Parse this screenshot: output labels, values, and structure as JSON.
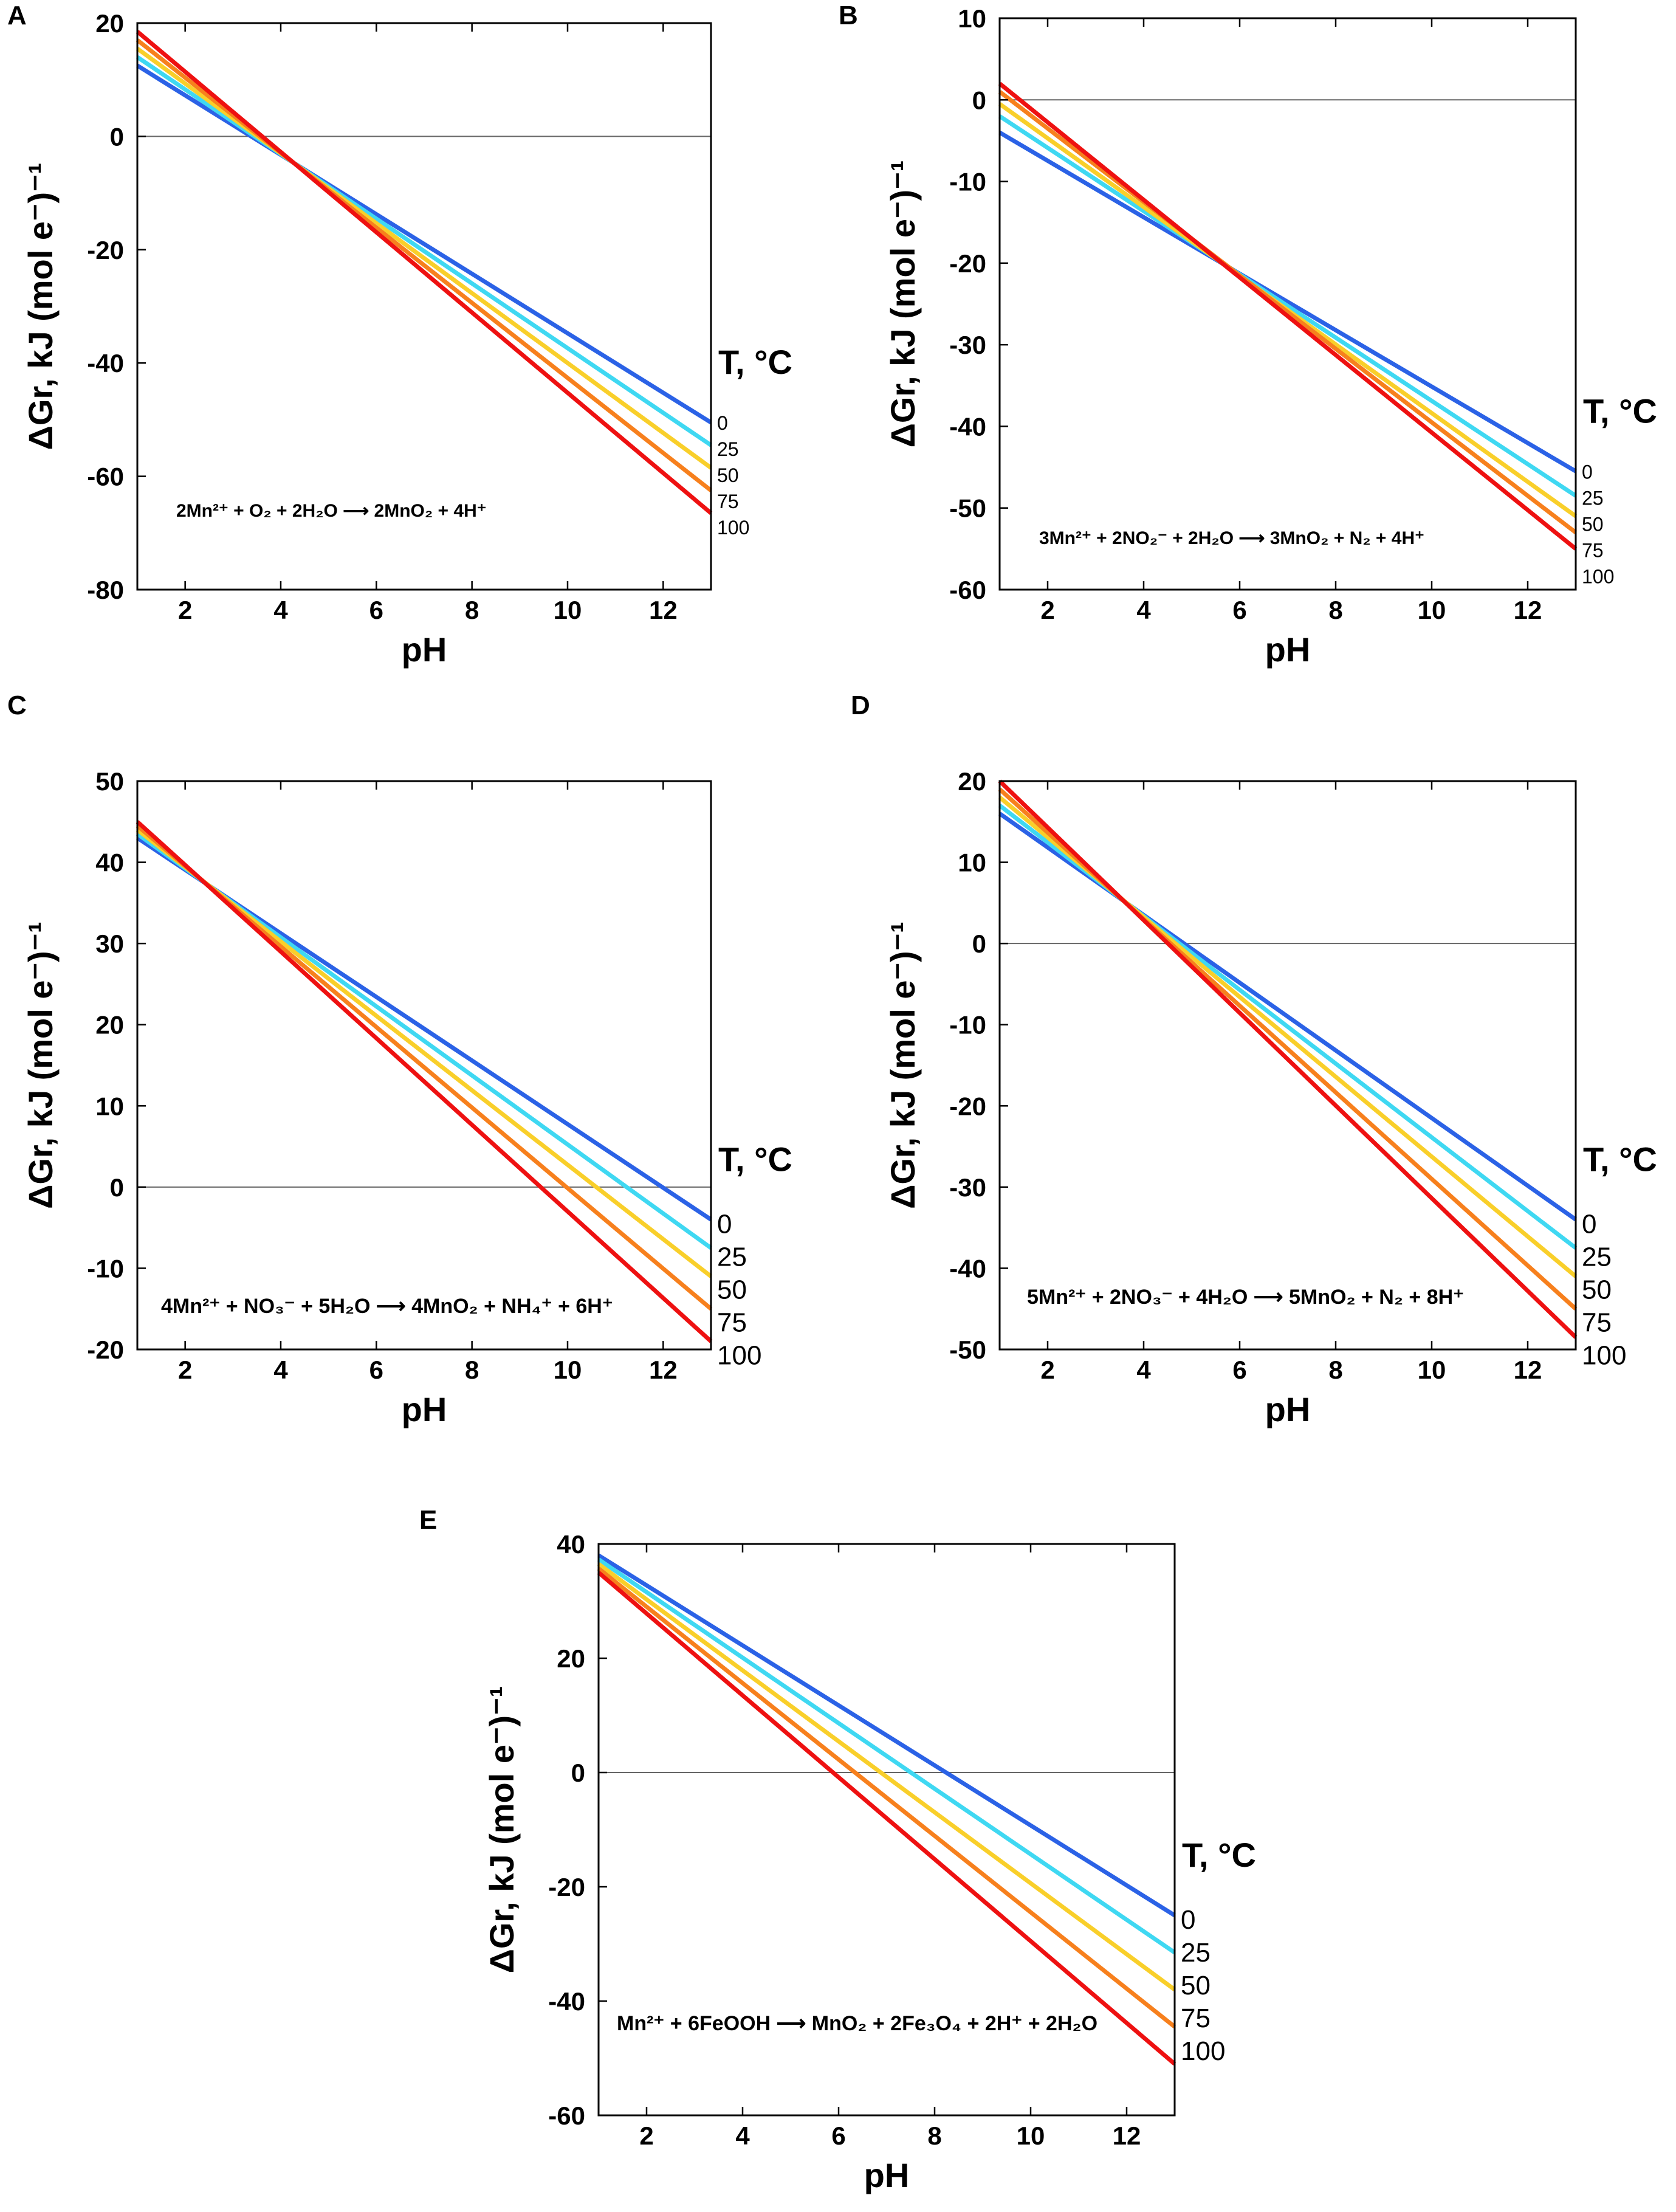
{
  "colors": {
    "0": "#2b62e6",
    "25": "#3fd8f2",
    "50": "#f9cf2a",
    "75": "#f7801d",
    "100": "#ee1111",
    "zero_line": "#666666",
    "axis": "#000000"
  },
  "chart_data": [
    {
      "panel": "A",
      "type": "line",
      "xlabel": "pH",
      "ylabel": "ΔGr, kJ (mol e⁻)⁻¹",
      "xlim": [
        1,
        13
      ],
      "ylim": [
        -80,
        20
      ],
      "xticks": [
        2,
        4,
        6,
        8,
        10,
        12
      ],
      "yticks": [
        20,
        0,
        -20,
        -40,
        -60,
        -80
      ],
      "legend_title": "T, °C",
      "equation": "2Mn²⁺ + O₂ + 2H₂O ⟶ 2MnO₂ + 4H⁺",
      "series": [
        {
          "name": "0",
          "x": [
            1,
            13
          ],
          "y": [
            12.5,
            -50.5
          ]
        },
        {
          "name": "25",
          "x": [
            1,
            13
          ],
          "y": [
            14.0,
            -54.5
          ]
        },
        {
          "name": "50",
          "x": [
            1,
            13
          ],
          "y": [
            15.5,
            -58.5
          ]
        },
        {
          "name": "75",
          "x": [
            1,
            13
          ],
          "y": [
            17.0,
            -62.5
          ]
        },
        {
          "name": "100",
          "x": [
            1,
            13
          ],
          "y": [
            18.5,
            -66.5
          ]
        }
      ]
    },
    {
      "panel": "B",
      "type": "line",
      "xlabel": "pH",
      "ylabel": "ΔGr, kJ (mol e⁻)⁻¹",
      "xlim": [
        1,
        13
      ],
      "ylim": [
        -60,
        10
      ],
      "xticks": [
        2,
        4,
        6,
        8,
        10,
        12
      ],
      "yticks": [
        10,
        0,
        -10,
        -20,
        -30,
        -40,
        -50,
        -60
      ],
      "legend_title": "T, °C",
      "equation": "3Mn²⁺ + 2NO₂⁻ + 2H₂O ⟶ 3MnO₂ + N₂ + 4H⁺",
      "series": [
        {
          "name": "0",
          "x": [
            1,
            13
          ],
          "y": [
            -4.0,
            -45.5
          ]
        },
        {
          "name": "25",
          "x": [
            1,
            13
          ],
          "y": [
            -2.0,
            -48.5
          ]
        },
        {
          "name": "50",
          "x": [
            1,
            13
          ],
          "y": [
            -0.5,
            -51.0
          ]
        },
        {
          "name": "75",
          "x": [
            1,
            13
          ],
          "y": [
            1.0,
            -53.0
          ]
        },
        {
          "name": "100",
          "x": [
            1,
            13
          ],
          "y": [
            2.0,
            -55.0
          ]
        }
      ]
    },
    {
      "panel": "C",
      "type": "line",
      "xlabel": "pH",
      "ylabel": "ΔGr, kJ (mol e⁻)⁻¹",
      "xlim": [
        1,
        13
      ],
      "ylim": [
        -20,
        50
      ],
      "xticks": [
        2,
        4,
        6,
        8,
        10,
        12
      ],
      "yticks": [
        50,
        40,
        30,
        20,
        10,
        0,
        -10,
        -20
      ],
      "legend_title": "T, °C",
      "equation": "4Mn²⁺ + NO₃⁻ + 5H₂O ⟶ 4MnO₂ + NH₄⁺ + 6H⁺",
      "series": [
        {
          "name": "0",
          "x": [
            1,
            13
          ],
          "y": [
            43.0,
            -4.0
          ]
        },
        {
          "name": "25",
          "x": [
            1,
            13
          ],
          "y": [
            43.5,
            -7.5
          ]
        },
        {
          "name": "50",
          "x": [
            1,
            13
          ],
          "y": [
            44.0,
            -11.0
          ]
        },
        {
          "name": "75",
          "x": [
            1,
            13
          ],
          "y": [
            44.5,
            -15.0
          ]
        },
        {
          "name": "100",
          "x": [
            1,
            13
          ],
          "y": [
            45.0,
            -19.0
          ]
        }
      ]
    },
    {
      "panel": "D",
      "type": "line",
      "xlabel": "pH",
      "ylabel": "ΔGr, kJ (mol e⁻)⁻¹",
      "xlim": [
        1,
        13
      ],
      "ylim": [
        -50,
        20
      ],
      "xticks": [
        2,
        4,
        6,
        8,
        10,
        12
      ],
      "yticks": [
        20,
        10,
        0,
        -10,
        -20,
        -30,
        -40,
        -50
      ],
      "legend_title": "T, °C",
      "equation": "5Mn²⁺ + 2NO₃⁻ + 4H₂O ⟶ 5MnO₂ + N₂ + 8H⁺",
      "series": [
        {
          "name": "0",
          "x": [
            1,
            13
          ],
          "y": [
            16.0,
            -34.0
          ]
        },
        {
          "name": "25",
          "x": [
            1,
            13
          ],
          "y": [
            17.0,
            -37.5
          ]
        },
        {
          "name": "50",
          "x": [
            1,
            13
          ],
          "y": [
            18.0,
            -41.0
          ]
        },
        {
          "name": "75",
          "x": [
            1,
            13
          ],
          "y": [
            19.0,
            -45.0
          ]
        },
        {
          "name": "100",
          "x": [
            1,
            13
          ],
          "y": [
            20.0,
            -48.5
          ]
        }
      ]
    },
    {
      "panel": "E",
      "type": "line",
      "xlabel": "pH",
      "ylabel": "ΔGr, kJ (mol e⁻)⁻¹",
      "xlim": [
        1,
        13
      ],
      "ylim": [
        -60,
        40
      ],
      "xticks": [
        2,
        4,
        6,
        8,
        10,
        12
      ],
      "yticks": [
        40,
        20,
        0,
        -20,
        -40,
        -60
      ],
      "legend_title": "T, °C",
      "equation": "Mn²⁺ + 6FeOOH ⟶ MnO₂ + 2Fe₃O₄ + 2H⁺ + 2H₂O",
      "series": [
        {
          "name": "0",
          "x": [
            1,
            13
          ],
          "y": [
            38.0,
            -25.0
          ]
        },
        {
          "name": "25",
          "x": [
            1,
            13
          ],
          "y": [
            37.3,
            -31.5
          ]
        },
        {
          "name": "50",
          "x": [
            1,
            13
          ],
          "y": [
            36.5,
            -38.0
          ]
        },
        {
          "name": "75",
          "x": [
            1,
            13
          ],
          "y": [
            35.7,
            -44.5
          ]
        },
        {
          "name": "100",
          "x": [
            1,
            13
          ],
          "y": [
            35.0,
            -51.0
          ]
        }
      ]
    }
  ]
}
